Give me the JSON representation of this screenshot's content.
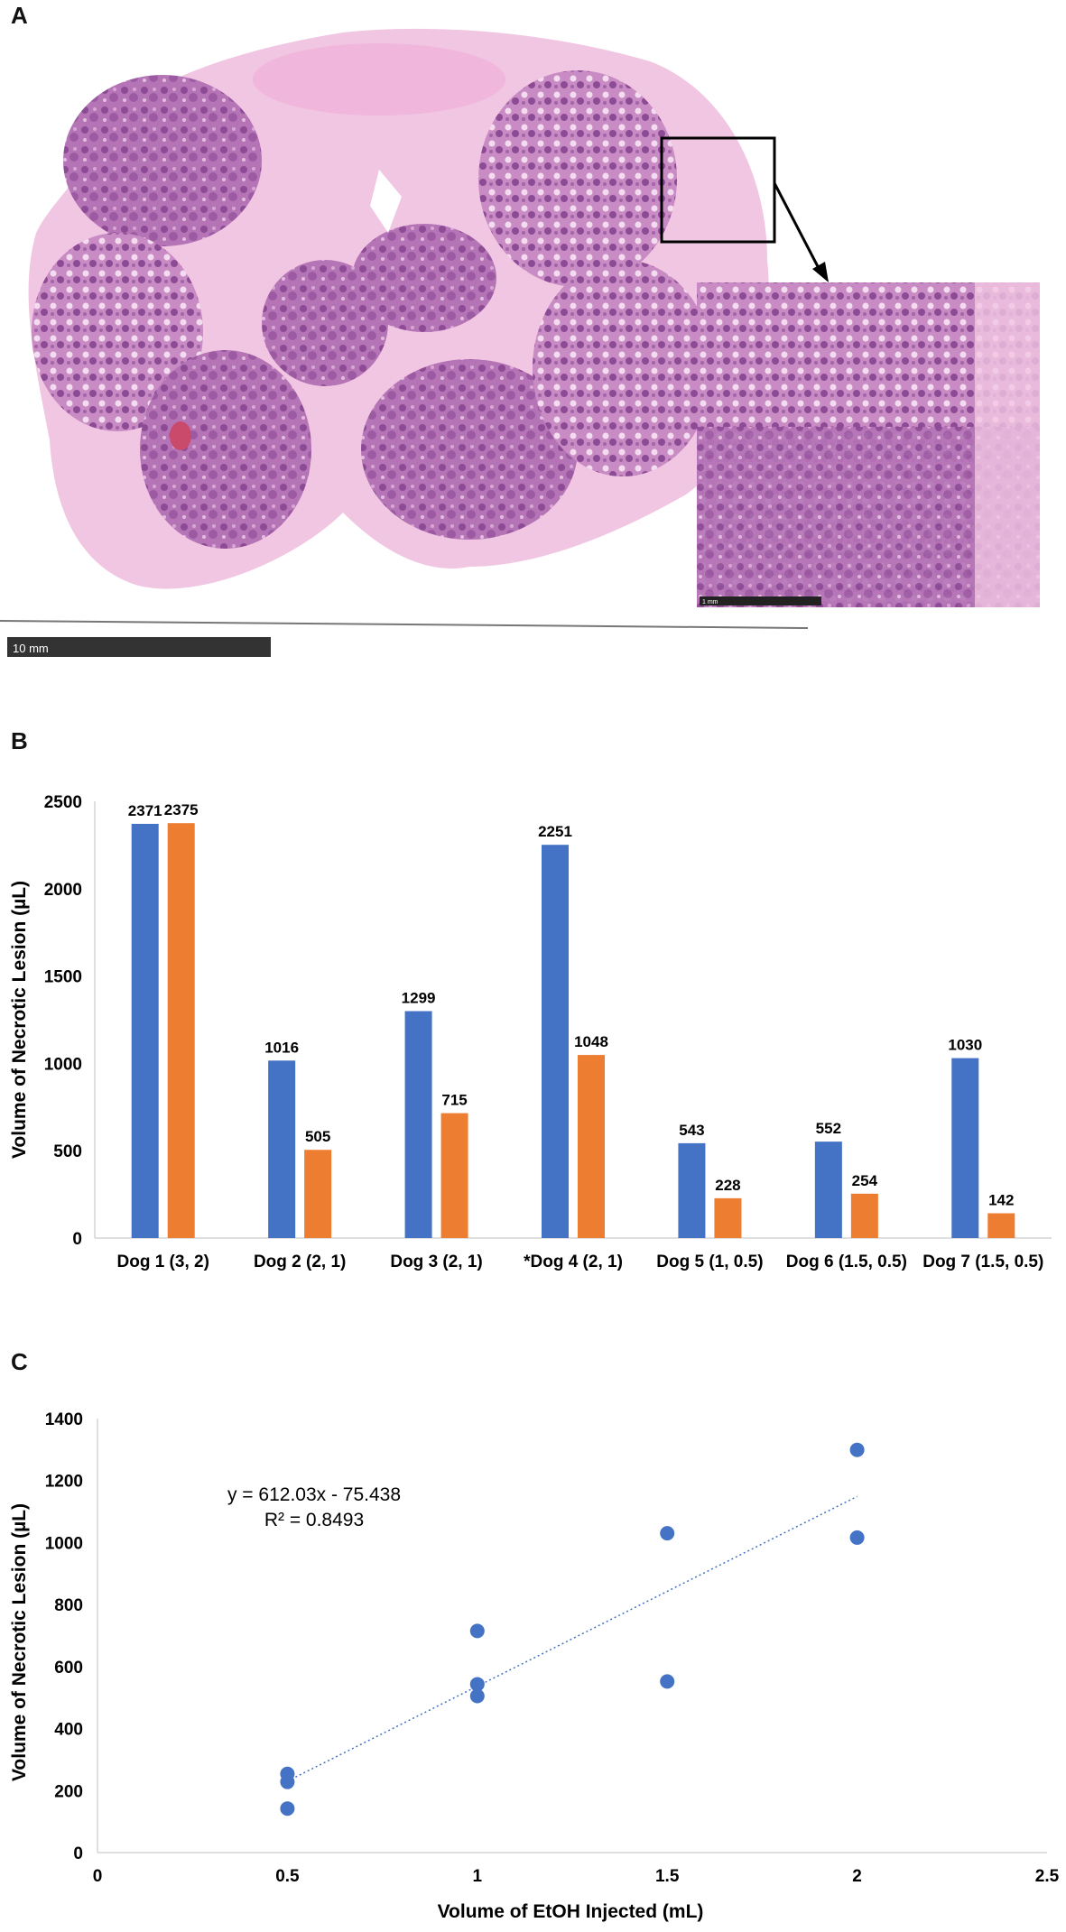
{
  "panel_labels": {
    "a": "A",
    "b": "B",
    "c": "C"
  },
  "panel_a": {
    "scale_bar_main": "10 mm",
    "scale_bar_inset": "1 mm",
    "colors": {
      "stain_light": "#f1c6e2",
      "stain_mid": "#c98bc4",
      "stain_dark": "#8d4a95",
      "background": "#ffffff"
    }
  },
  "chart_data": [
    {
      "type": "bar",
      "categories": [
        "Dog 1 (3, 2)",
        "Dog 2 (2, 1)",
        "Dog 3 (2, 1)",
        "*Dog 4 (2, 1)",
        "Dog 5 (1, 0.5)",
        "Dog 6 (1.5, 0.5)",
        "Dog 7 (1.5, 0.5)"
      ],
      "series": [
        {
          "color": "#4472c4",
          "values": [
            2371,
            1016,
            1299,
            2251,
            543,
            552,
            1030
          ]
        },
        {
          "color": "#ed7d31",
          "values": [
            2375,
            505,
            715,
            1048,
            228,
            254,
            142
          ]
        }
      ],
      "ylabel": "Volume of Necrotic Lesion  (µL)",
      "xlabel": "",
      "ylim": [
        0,
        2500
      ],
      "yticks": [
        "0",
        "500",
        "1000",
        "1500",
        "2000",
        "2500"
      ],
      "grid": false,
      "data_labels": true
    },
    {
      "type": "scatter",
      "points": [
        {
          "x": 0.5,
          "y": 254
        },
        {
          "x": 0.5,
          "y": 228
        },
        {
          "x": 0.5,
          "y": 142
        },
        {
          "x": 1,
          "y": 715
        },
        {
          "x": 1,
          "y": 543
        },
        {
          "x": 1,
          "y": 505
        },
        {
          "x": 1.5,
          "y": 1030
        },
        {
          "x": 1.5,
          "y": 552
        },
        {
          "x": 2,
          "y": 1299
        },
        {
          "x": 2,
          "y": 1016
        }
      ],
      "trendline": {
        "slope": 612.03,
        "intercept": -75.438,
        "x_range": [
          0.5,
          2
        ],
        "style": "dotted"
      },
      "equation_label": "y = 612.03x - 75.438",
      "r2_label": "R² = 0.8493",
      "xlabel": "Volume of EtOH Injected (mL)",
      "ylabel": "Volume of Necrotic Lesion  (µL)",
      "xlim": [
        0,
        2.5
      ],
      "ylim": [
        0,
        1400
      ],
      "xticks": [
        "0",
        "0.5",
        "1",
        "1.5",
        "2",
        "2.5"
      ],
      "yticks": [
        "0",
        "200",
        "400",
        "600",
        "800",
        "1000",
        "1200",
        "1400"
      ],
      "color": "#4472c4",
      "grid": false
    }
  ]
}
